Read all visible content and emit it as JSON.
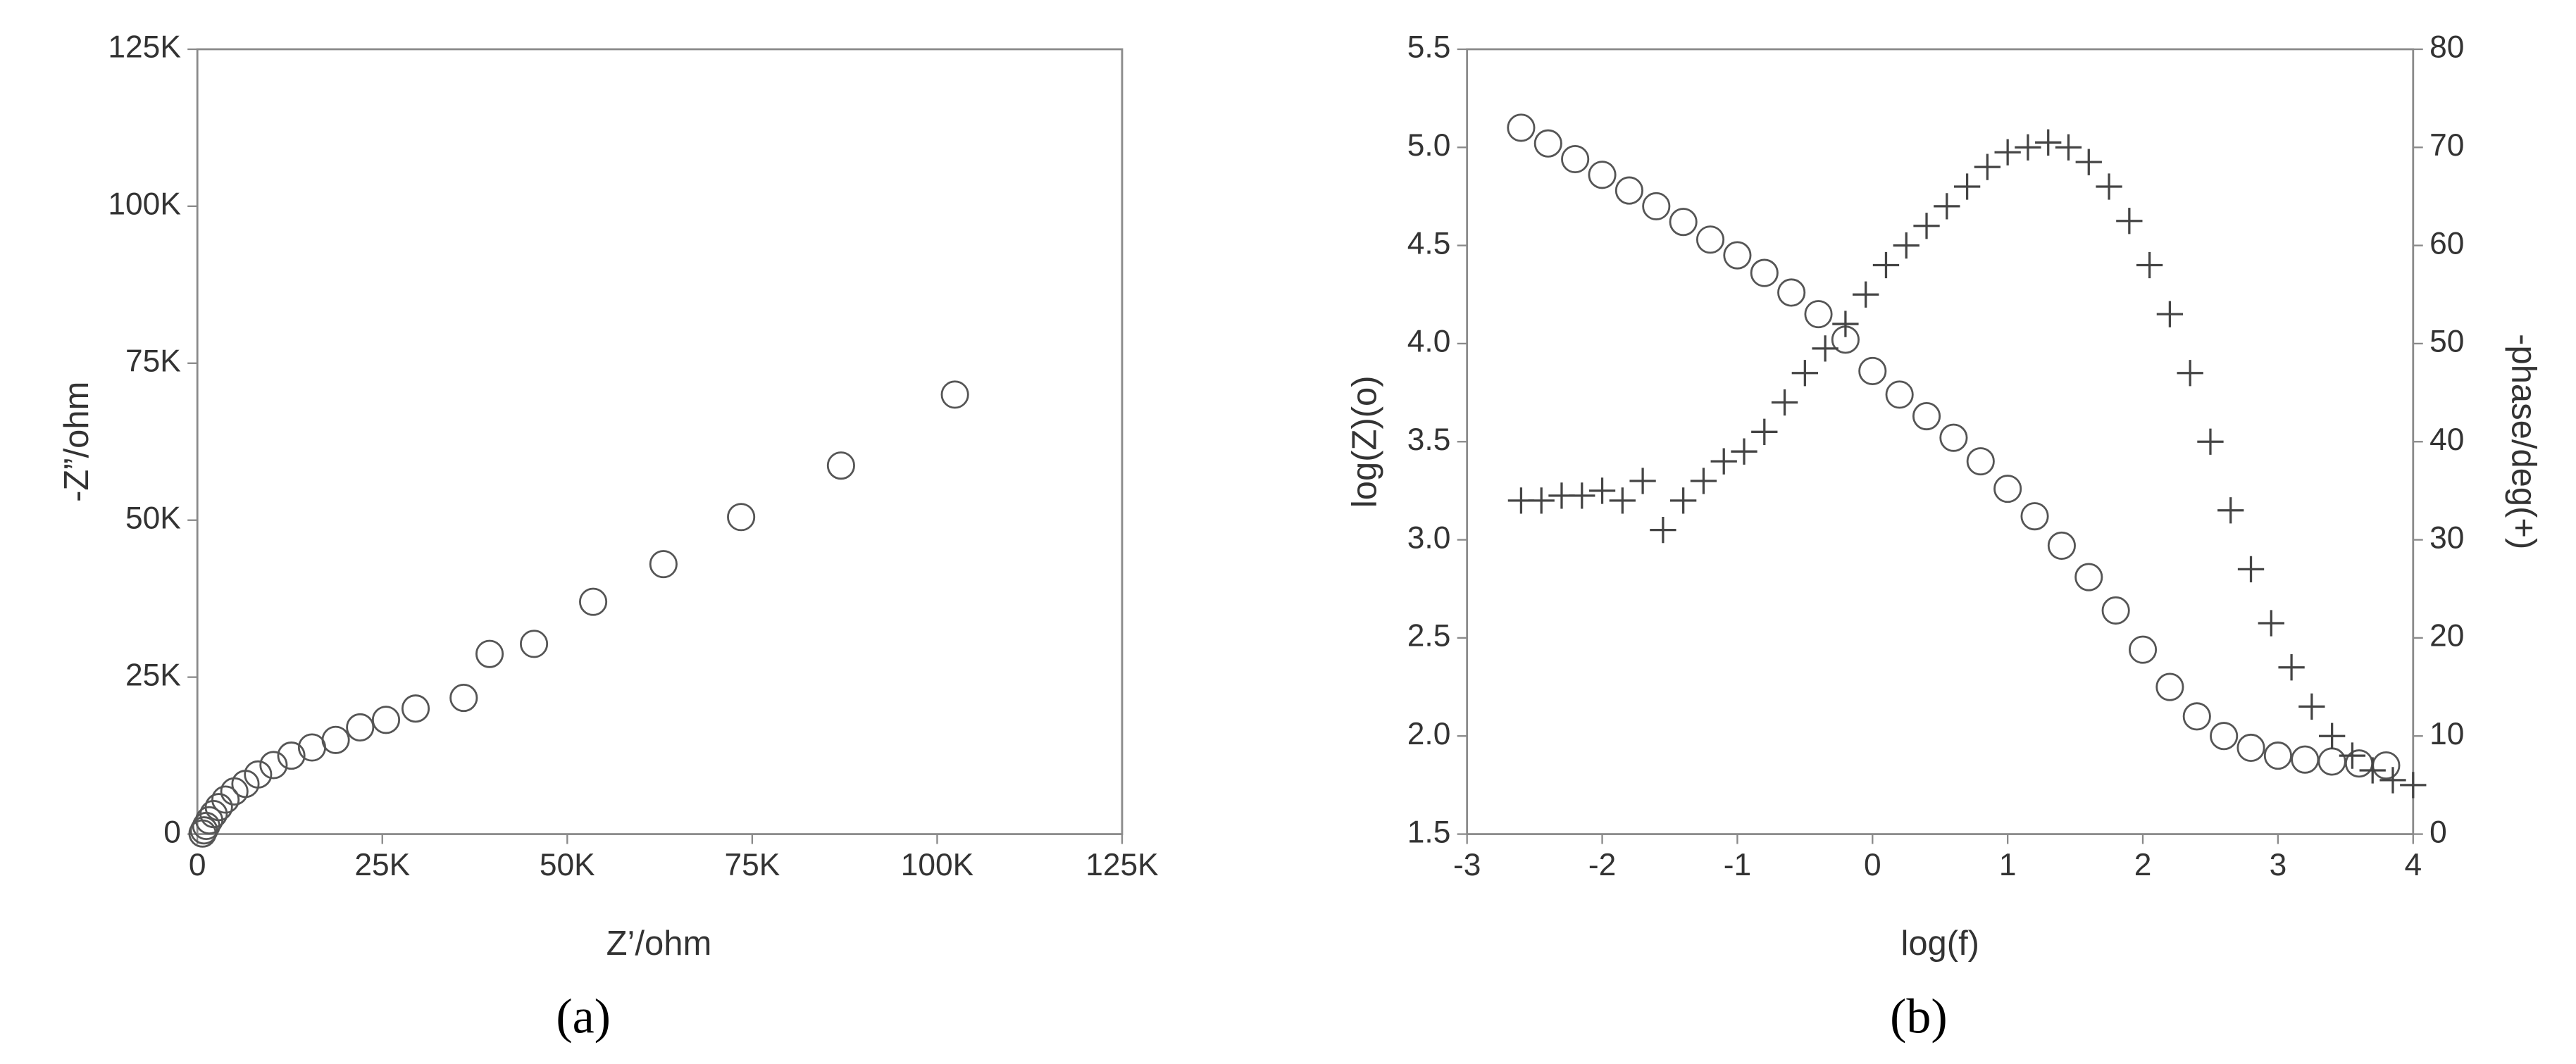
{
  "chart_data": [
    {
      "type": "scatter",
      "xlabel": "Z’/ohm",
      "ylabel": "-Z”/ohm",
      "caption": "(a)",
      "xlim": [
        0,
        125000
      ],
      "xticks": [
        0,
        {
          "value": 25000,
          "label": "25K"
        },
        {
          "value": 50000,
          "label": "50K"
        },
        {
          "value": 75000,
          "label": "75K"
        },
        {
          "value": 100000,
          "label": "100K"
        },
        {
          "value": 125000,
          "label": "125K"
        }
      ],
      "ylim": [
        0,
        125000
      ],
      "yticks": [
        0,
        {
          "value": 25000,
          "label": "25K"
        },
        {
          "value": 50000,
          "label": "50K"
        },
        {
          "value": 75000,
          "label": "75K"
        },
        {
          "value": 100000,
          "label": "100K"
        },
        {
          "value": 125000,
          "label": "125K"
        }
      ],
      "series": [
        {
          "marker": "circle",
          "color": "#555555",
          "x": [
            102400,
            87000,
            73500,
            63000,
            53500,
            45500,
            39500,
            36000,
            29500,
            25500,
            22000,
            18700,
            15500,
            12700,
            10300,
            8200,
            6500,
            5000,
            3800,
            2900,
            2200,
            1600,
            1200,
            900,
            700
          ],
          "values": [
            70000,
            58700,
            50500,
            43000,
            37000,
            30300,
            28700,
            21700,
            20000,
            18200,
            17000,
            15000,
            13800,
            12500,
            11000,
            9500,
            8000,
            6800,
            5500,
            4300,
            3200,
            2200,
            1300,
            600,
            100
          ]
        }
      ]
    },
    {
      "type": "scatter",
      "xlabel": "log(f)",
      "ylabel": "log(Z)(o)",
      "y2label": "-phase/deg(+)",
      "caption": "(b)",
      "xlim": [
        -3,
        4
      ],
      "xticks": [
        -3,
        -2,
        -1,
        0,
        1,
        2,
        3,
        4
      ],
      "ylim": [
        1.5,
        5.5
      ],
      "yticks": [
        1.5,
        {
          "value": 2,
          "label": "2.0"
        },
        2.5,
        {
          "value": 3,
          "label": "3.0"
        },
        3.5,
        {
          "value": 4,
          "label": "4.0"
        },
        4.5,
        {
          "value": 5,
          "label": "5.0"
        },
        5.5
      ],
      "y2lim": [
        0,
        80
      ],
      "y2ticks": [
        0,
        10,
        20,
        30,
        40,
        50,
        60,
        70,
        80
      ],
      "series": [
        {
          "marker": "circle",
          "color": "#555555",
          "x": [
            -2.6,
            -2.4,
            -2.2,
            -2,
            -1.8,
            -1.6,
            -1.4,
            -1.2,
            -1,
            -0.8,
            -0.6,
            -0.4,
            -0.2,
            0,
            0.2,
            0.4,
            0.6,
            0.8,
            1,
            1.2,
            1.4,
            1.6,
            1.8,
            2,
            2.2,
            2.4,
            2.6,
            2.8,
            3,
            3.2,
            3.4,
            3.6,
            3.8
          ],
          "values": [
            5.1,
            5.02,
            4.94,
            4.86,
            4.78,
            4.7,
            4.62,
            4.53,
            4.45,
            4.36,
            4.26,
            4.15,
            4.02,
            3.86,
            3.74,
            3.63,
            3.52,
            3.4,
            3.26,
            3.12,
            2.97,
            2.81,
            2.64,
            2.44,
            2.25,
            2.1,
            2.0,
            1.94,
            1.9,
            1.88,
            1.87,
            1.86,
            1.85
          ]
        },
        {
          "marker": "cross",
          "color": "#444444",
          "axis": "y2",
          "x": [
            -2.6,
            -2.45,
            -2.3,
            -2.15,
            -2,
            -1.85,
            -1.7,
            -1.55,
            -1.4,
            -1.25,
            -1.1,
            -0.95,
            -0.8,
            -0.65,
            -0.5,
            -0.35,
            -0.2,
            -0.05,
            0.1,
            0.25,
            0.4,
            0.55,
            0.7,
            0.85,
            1,
            1.15,
            1.3,
            1.45,
            1.6,
            1.75,
            1.9,
            2.05,
            2.2,
            2.35,
            2.5,
            2.65,
            2.8,
            2.95,
            3.1,
            3.25,
            3.4,
            3.55,
            3.7,
            3.85,
            4
          ],
          "values": [
            34,
            34,
            34.5,
            34.5,
            35,
            34,
            36,
            31,
            34,
            36,
            38,
            39,
            41,
            44,
            47,
            49.5,
            52,
            55,
            58,
            60,
            62,
            64,
            66,
            68,
            69.5,
            70,
            70.5,
            70,
            68.5,
            66,
            62.5,
            58,
            53,
            47,
            40,
            33,
            27,
            21.5,
            17,
            13,
            10,
            8,
            6.5,
            5.5,
            5
          ]
        }
      ]
    }
  ]
}
